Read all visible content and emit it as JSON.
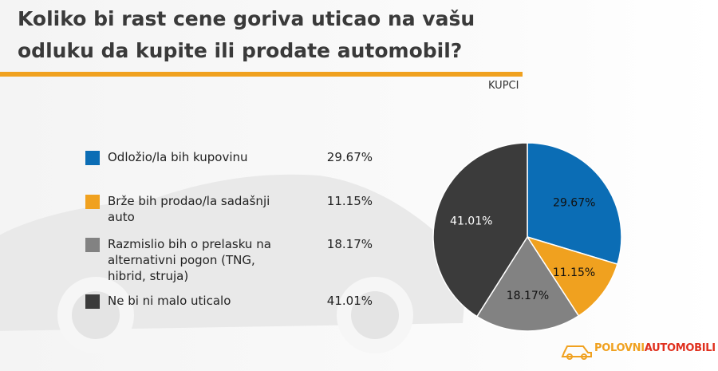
{
  "chart_data": {
    "type": "pie",
    "title": "Koliko bi rast cene goriva uticao na vašu odluku da kupite ili prodate automobil?",
    "subtitle": "KUPCI",
    "categories": [
      "Odložio/la bih kupovinu",
      "Brže bih prodao/la sadašnji auto",
      "Razmislio bih o prelasku na alternativni pogon (TNG, hibrid, struja)",
      "Ne bi ni malo uticalo"
    ],
    "values": [
      29.67,
      11.15,
      18.17,
      41.01
    ],
    "value_labels": [
      "29.67%",
      "11.15%",
      "18.17%",
      "41.01%"
    ],
    "colors": [
      "#0b6db5",
      "#f0a11f",
      "#828282",
      "#3b3b3b"
    ]
  },
  "logo": {
    "first": "POLOVNI",
    "second": "AUTOMOBILI"
  }
}
